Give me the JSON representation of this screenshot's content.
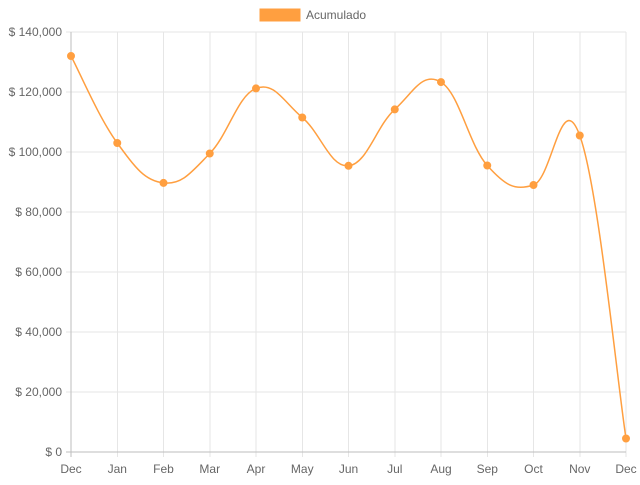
{
  "chart_data": {
    "type": "line",
    "categories": [
      "Dec",
      "Jan",
      "Feb",
      "Mar",
      "Apr",
      "May",
      "Jun",
      "Jul",
      "Aug",
      "Sep",
      "Oct",
      "Nov",
      "Dec"
    ],
    "series": [
      {
        "name": "Acumulado",
        "color": "#ff9f40",
        "values": [
          132000,
          103000,
          89700,
          99500,
          121200,
          111500,
          95400,
          114200,
          123300,
          95500,
          89000,
          105500,
          4500
        ]
      }
    ],
    "yticks": [
      "$ 0",
      "$ 20,000",
      "$ 40,000",
      "$ 60,000",
      "$ 80,000",
      "$ 100,000",
      "$ 120,000",
      "$ 140,000"
    ],
    "ylim": [
      0,
      140000
    ],
    "grid": true,
    "legend_position": "top-center"
  }
}
